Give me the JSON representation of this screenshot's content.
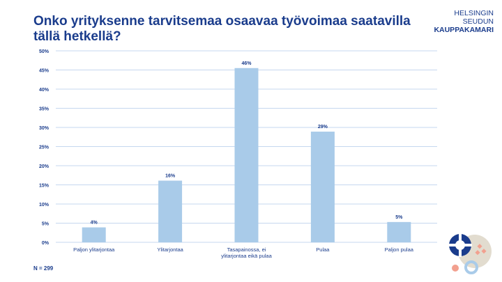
{
  "header": {
    "title": "Onko yrityksenne tarvitsemaa osaavaa työvoimaa saatavilla tällä hetkellä?",
    "logo_line1": "HELSINGIN SEUDUN",
    "logo_line2": "KAUPPAKAMARI"
  },
  "footer": {
    "n_label": "N = 299"
  },
  "colors": {
    "bar": "#a9cbe9",
    "grid": "#c5d7ef",
    "text": "#1a3c8c"
  },
  "chart_data": {
    "type": "bar",
    "title": "Onko yrityksenne tarvitsemaa osaavaa työvoimaa saatavilla tällä hetkellä?",
    "categories": [
      [
        "Paljon ylitarjontaa"
      ],
      [
        "Ylitarjontaa"
      ],
      [
        "Tasapainossa, ei",
        "ylitarjontaa eikä pulaa"
      ],
      [
        "Pulaa"
      ],
      [
        "Paljon pulaa"
      ]
    ],
    "values": [
      4,
      16,
      46,
      29,
      5
    ],
    "exact_values": [
      3.9,
      16.1,
      45.5,
      28.9,
      5.3
    ],
    "data_labels": [
      "4%",
      "16%",
      "46%",
      "29%",
      "5%"
    ],
    "yticks": [
      "0%",
      "5%",
      "10%",
      "15%",
      "20%",
      "25%",
      "30%",
      "35%",
      "40%",
      "45%",
      "50%"
    ],
    "ylim": [
      0,
      50
    ],
    "xlabel": "",
    "ylabel": "",
    "grid": true,
    "legend": "none"
  }
}
